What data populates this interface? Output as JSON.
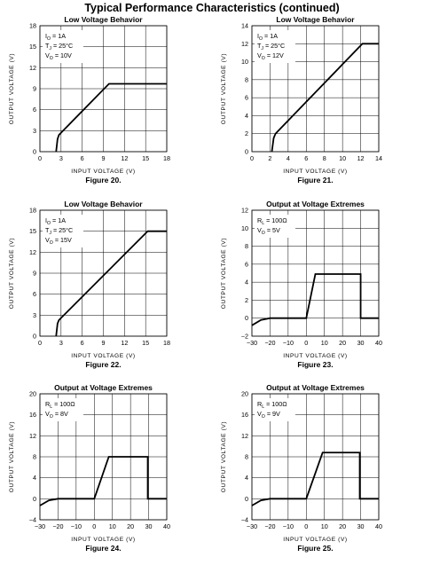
{
  "page_title": "Typical Performance Characteristics (continued)",
  "chart_data": [
    {
      "type": "line",
      "title": "Low Voltage Behavior",
      "figure": "Figure 20.",
      "xlabel": "INPUT VOLTAGE (V)",
      "ylabel": "OUTPUT VOLTAGE (V)",
      "xlim": [
        0,
        18
      ],
      "ylim": [
        0,
        18
      ],
      "xticks": [
        0,
        3,
        6,
        9,
        12,
        15,
        18
      ],
      "yticks": [
        0,
        3,
        6,
        9,
        12,
        15,
        18
      ],
      "annotations": [
        {
          "sym": "I",
          "sub": "O",
          "val": "= 1A"
        },
        {
          "sym": "T",
          "sub": "J",
          "val": "= 25°C"
        },
        {
          "sym": "V",
          "sub": "O",
          "val": "= 10V"
        }
      ],
      "x": [
        2.3,
        2.5,
        2.7,
        9.8,
        18
      ],
      "y": [
        0,
        1.8,
        2.4,
        9.7,
        9.7
      ]
    },
    {
      "type": "line",
      "title": "Low Voltage Behavior",
      "figure": "Figure 21.",
      "xlabel": "INPUT VOLTAGE (V)",
      "ylabel": "OUTPUT VOLTAGE (V)",
      "xlim": [
        0,
        14
      ],
      "ylim": [
        0,
        14
      ],
      "xticks": [
        0,
        2,
        4,
        6,
        8,
        10,
        12,
        14
      ],
      "yticks": [
        0,
        2,
        4,
        6,
        8,
        10,
        12,
        14
      ],
      "annotations": [
        {
          "sym": "I",
          "sub": "O",
          "val": "= 1A"
        },
        {
          "sym": "T",
          "sub": "J",
          "val": "= 25°C"
        },
        {
          "sym": "V",
          "sub": "O",
          "val": "= 12V"
        }
      ],
      "x": [
        2.2,
        2.4,
        2.6,
        12.2,
        14
      ],
      "y": [
        0,
        1.5,
        2.0,
        12.0,
        12.0
      ]
    },
    {
      "type": "line",
      "title": "Low Voltage Behavior",
      "figure": "Figure 22.",
      "xlabel": "INPUT VOLTAGE (V)",
      "ylabel": "OUTPUT VOLTAGE (V)",
      "xlim": [
        0,
        18
      ],
      "ylim": [
        0,
        18
      ],
      "xticks": [
        0,
        3,
        6,
        9,
        12,
        15,
        18
      ],
      "yticks": [
        0,
        3,
        6,
        9,
        12,
        15,
        18
      ],
      "annotations": [
        {
          "sym": "I",
          "sub": "O",
          "val": "= 1A"
        },
        {
          "sym": "T",
          "sub": "J",
          "val": "= 25°C"
        },
        {
          "sym": "V",
          "sub": "O",
          "val": "= 15V"
        }
      ],
      "x": [
        2.3,
        2.5,
        2.7,
        15.3,
        18
      ],
      "y": [
        0,
        1.8,
        2.3,
        15.0,
        15.0
      ]
    },
    {
      "type": "line",
      "title": "Output at Voltage Extremes",
      "figure": "Figure 23.",
      "xlabel": "INPUT VOLTAGE (V)",
      "ylabel": "OUTPUT VOLTAGE (V)",
      "xlim": [
        -30,
        40
      ],
      "ylim": [
        -2,
        12
      ],
      "xticks": [
        -30,
        -20,
        -10,
        0,
        10,
        20,
        30,
        40
      ],
      "yticks": [
        -2,
        0,
        2,
        4,
        6,
        8,
        10,
        12
      ],
      "annotations": [
        {
          "sym": "R",
          "sub": "L",
          "val": "= 100Ω"
        },
        {
          "sym": "V",
          "sub": "O",
          "val": "= 5V"
        }
      ],
      "x": [
        -30,
        -25,
        -20,
        0,
        5,
        30,
        30,
        40
      ],
      "y": [
        -0.8,
        -0.2,
        0,
        0,
        4.9,
        4.9,
        0,
        0
      ]
    },
    {
      "type": "line",
      "title": "Output at Voltage Extremes",
      "figure": "Figure 24.",
      "xlabel": "INPUT VOLTAGE (V)",
      "ylabel": "OUTPUT VOLTAGE (V)",
      "xlim": [
        -30,
        40
      ],
      "ylim": [
        -4,
        20
      ],
      "xticks": [
        -30,
        -20,
        -10,
        0,
        10,
        20,
        30,
        40
      ],
      "yticks": [
        -4,
        0,
        4,
        8,
        12,
        16,
        20
      ],
      "annotations": [
        {
          "sym": "R",
          "sub": "L",
          "val": "= 100Ω"
        },
        {
          "sym": "V",
          "sub": "O",
          "val": "= 8V"
        }
      ],
      "x": [
        -30,
        -25,
        -20,
        0,
        8,
        29.5,
        29.5,
        40
      ],
      "y": [
        -1.3,
        -0.3,
        0,
        0,
        8.0,
        8.0,
        0,
        0
      ]
    },
    {
      "type": "line",
      "title": "Output at Voltage Extremes",
      "figure": "Figure 25.",
      "xlabel": "INPUT VOLTAGE (V)",
      "ylabel": "OUTPUT VOLTAGE (V)",
      "xlim": [
        -30,
        40
      ],
      "ylim": [
        -4,
        20
      ],
      "xticks": [
        -30,
        -20,
        -10,
        0,
        10,
        20,
        30,
        40
      ],
      "yticks": [
        -4,
        0,
        4,
        8,
        12,
        16,
        20
      ],
      "annotations": [
        {
          "sym": "R",
          "sub": "L",
          "val": "= 100Ω"
        },
        {
          "sym": "V",
          "sub": "O",
          "val": "= 9V"
        }
      ],
      "x": [
        -30,
        -25,
        -20,
        0,
        9,
        29.5,
        29.5,
        40
      ],
      "y": [
        -1.3,
        -0.3,
        0,
        0,
        8.8,
        8.8,
        0,
        0
      ]
    }
  ]
}
